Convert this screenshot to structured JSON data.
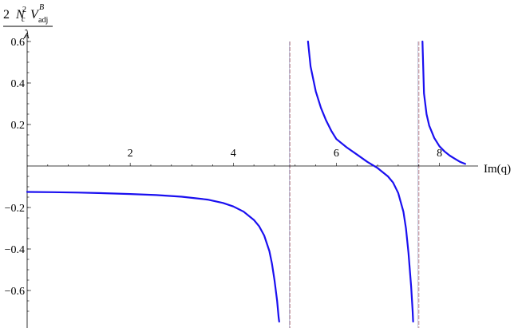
{
  "chart_data": {
    "type": "line",
    "title": "",
    "ylabel": {
      "coef": "2",
      "N": "N",
      "N_sub": "c",
      "N_sup": "2",
      "V": "V",
      "V_sup": "B",
      "V_sub": "adj",
      "denominator": "λ"
    },
    "xlabel": "Im(q)",
    "xlim": [
      0,
      8.75
    ],
    "ylim": [
      -0.75,
      0.6
    ],
    "x_ticks": [
      {
        "value": 2,
        "label": "2"
      },
      {
        "value": 4,
        "label": "4"
      },
      {
        "value": 6,
        "label": "6"
      },
      {
        "value": 8,
        "label": "8"
      }
    ],
    "y_ticks": [
      {
        "value": 0.6,
        "label": "0.6"
      },
      {
        "value": 0.4,
        "label": "0.4"
      },
      {
        "value": 0.2,
        "label": "0.2"
      },
      {
        "value": -0.2,
        "label": "−0.2"
      },
      {
        "value": -0.4,
        "label": "−0.4"
      },
      {
        "value": -0.6,
        "label": "−0.6"
      }
    ],
    "asymptotes_x": [
      5.1,
      7.6
    ],
    "series": [
      {
        "color": "#1a0ff0",
        "segments": [
          [
            [
              0.0,
              -0.125
            ],
            [
              0.5,
              -0.126
            ],
            [
              1.0,
              -0.128
            ],
            [
              1.5,
              -0.131
            ],
            [
              2.0,
              -0.135
            ],
            [
              2.5,
              -0.14
            ],
            [
              3.0,
              -0.148
            ],
            [
              3.5,
              -0.162
            ],
            [
              3.8,
              -0.178
            ],
            [
              4.0,
              -0.195
            ],
            [
              4.2,
              -0.22
            ],
            [
              4.4,
              -0.26
            ],
            [
              4.5,
              -0.29
            ],
            [
              4.6,
              -0.335
            ],
            [
              4.7,
              -0.41
            ],
            [
              4.75,
              -0.47
            ],
            [
              4.8,
              -0.55
            ],
            [
              4.85,
              -0.65
            ],
            [
              4.88,
              -0.73
            ],
            [
              4.89,
              -0.75
            ]
          ],
          [
            [
              5.45,
              0.6
            ],
            [
              5.5,
              0.48
            ],
            [
              5.6,
              0.36
            ],
            [
              5.7,
              0.28
            ],
            [
              5.8,
              0.22
            ],
            [
              5.9,
              0.17
            ],
            [
              6.0,
              0.13
            ],
            [
              6.2,
              0.09
            ],
            [
              6.4,
              0.055
            ],
            [
              6.6,
              0.02
            ],
            [
              6.8,
              -0.01
            ],
            [
              7.0,
              -0.05
            ],
            [
              7.1,
              -0.08
            ],
            [
              7.2,
              -0.13
            ],
            [
              7.3,
              -0.22
            ],
            [
              7.35,
              -0.3
            ],
            [
              7.4,
              -0.42
            ],
            [
              7.45,
              -0.58
            ],
            [
              7.48,
              -0.7
            ],
            [
              7.49,
              -0.75
            ]
          ],
          [
            [
              7.67,
              0.6
            ],
            [
              7.7,
              0.35
            ],
            [
              7.75,
              0.25
            ],
            [
              7.8,
              0.195
            ],
            [
              7.9,
              0.135
            ],
            [
              8.0,
              0.095
            ],
            [
              8.1,
              0.07
            ],
            [
              8.2,
              0.05
            ],
            [
              8.3,
              0.035
            ],
            [
              8.4,
              0.02
            ],
            [
              8.5,
              0.01
            ]
          ]
        ]
      }
    ]
  }
}
